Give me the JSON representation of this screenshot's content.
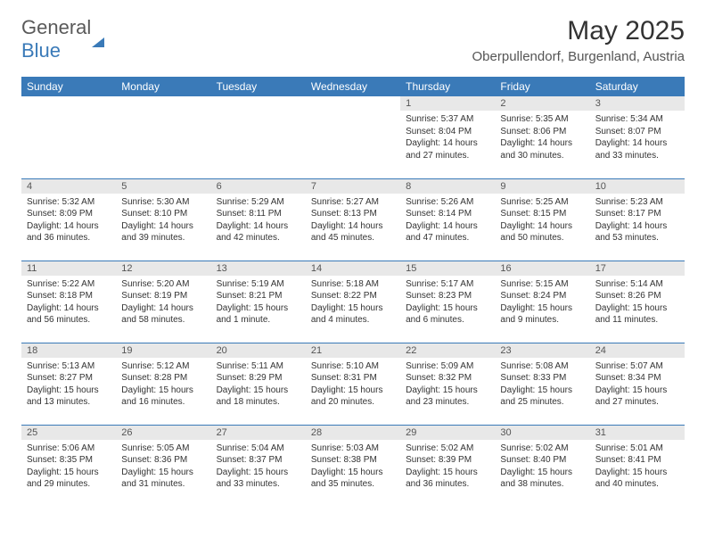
{
  "logo": {
    "general": "General",
    "blue": "Blue"
  },
  "title": "May 2025",
  "location": "Oberpullendorf, Burgenland, Austria",
  "colors": {
    "header_bg": "#3a7ab8",
    "header_fg": "#ffffff",
    "daynum_bg": "#e8e8e8",
    "border": "#3a7ab8",
    "text": "#333333"
  },
  "weekdays": [
    "Sunday",
    "Monday",
    "Tuesday",
    "Wednesday",
    "Thursday",
    "Friday",
    "Saturday"
  ],
  "weeks": [
    [
      null,
      null,
      null,
      null,
      {
        "d": "1",
        "sr": "5:37 AM",
        "ss": "8:04 PM",
        "dl": "14 hours and 27 minutes."
      },
      {
        "d": "2",
        "sr": "5:35 AM",
        "ss": "8:06 PM",
        "dl": "14 hours and 30 minutes."
      },
      {
        "d": "3",
        "sr": "5:34 AM",
        "ss": "8:07 PM",
        "dl": "14 hours and 33 minutes."
      }
    ],
    [
      {
        "d": "4",
        "sr": "5:32 AM",
        "ss": "8:09 PM",
        "dl": "14 hours and 36 minutes."
      },
      {
        "d": "5",
        "sr": "5:30 AM",
        "ss": "8:10 PM",
        "dl": "14 hours and 39 minutes."
      },
      {
        "d": "6",
        "sr": "5:29 AM",
        "ss": "8:11 PM",
        "dl": "14 hours and 42 minutes."
      },
      {
        "d": "7",
        "sr": "5:27 AM",
        "ss": "8:13 PM",
        "dl": "14 hours and 45 minutes."
      },
      {
        "d": "8",
        "sr": "5:26 AM",
        "ss": "8:14 PM",
        "dl": "14 hours and 47 minutes."
      },
      {
        "d": "9",
        "sr": "5:25 AM",
        "ss": "8:15 PM",
        "dl": "14 hours and 50 minutes."
      },
      {
        "d": "10",
        "sr": "5:23 AM",
        "ss": "8:17 PM",
        "dl": "14 hours and 53 minutes."
      }
    ],
    [
      {
        "d": "11",
        "sr": "5:22 AM",
        "ss": "8:18 PM",
        "dl": "14 hours and 56 minutes."
      },
      {
        "d": "12",
        "sr": "5:20 AM",
        "ss": "8:19 PM",
        "dl": "14 hours and 58 minutes."
      },
      {
        "d": "13",
        "sr": "5:19 AM",
        "ss": "8:21 PM",
        "dl": "15 hours and 1 minute."
      },
      {
        "d": "14",
        "sr": "5:18 AM",
        "ss": "8:22 PM",
        "dl": "15 hours and 4 minutes."
      },
      {
        "d": "15",
        "sr": "5:17 AM",
        "ss": "8:23 PM",
        "dl": "15 hours and 6 minutes."
      },
      {
        "d": "16",
        "sr": "5:15 AM",
        "ss": "8:24 PM",
        "dl": "15 hours and 9 minutes."
      },
      {
        "d": "17",
        "sr": "5:14 AM",
        "ss": "8:26 PM",
        "dl": "15 hours and 11 minutes."
      }
    ],
    [
      {
        "d": "18",
        "sr": "5:13 AM",
        "ss": "8:27 PM",
        "dl": "15 hours and 13 minutes."
      },
      {
        "d": "19",
        "sr": "5:12 AM",
        "ss": "8:28 PM",
        "dl": "15 hours and 16 minutes."
      },
      {
        "d": "20",
        "sr": "5:11 AM",
        "ss": "8:29 PM",
        "dl": "15 hours and 18 minutes."
      },
      {
        "d": "21",
        "sr": "5:10 AM",
        "ss": "8:31 PM",
        "dl": "15 hours and 20 minutes."
      },
      {
        "d": "22",
        "sr": "5:09 AM",
        "ss": "8:32 PM",
        "dl": "15 hours and 23 minutes."
      },
      {
        "d": "23",
        "sr": "5:08 AM",
        "ss": "8:33 PM",
        "dl": "15 hours and 25 minutes."
      },
      {
        "d": "24",
        "sr": "5:07 AM",
        "ss": "8:34 PM",
        "dl": "15 hours and 27 minutes."
      }
    ],
    [
      {
        "d": "25",
        "sr": "5:06 AM",
        "ss": "8:35 PM",
        "dl": "15 hours and 29 minutes."
      },
      {
        "d": "26",
        "sr": "5:05 AM",
        "ss": "8:36 PM",
        "dl": "15 hours and 31 minutes."
      },
      {
        "d": "27",
        "sr": "5:04 AM",
        "ss": "8:37 PM",
        "dl": "15 hours and 33 minutes."
      },
      {
        "d": "28",
        "sr": "5:03 AM",
        "ss": "8:38 PM",
        "dl": "15 hours and 35 minutes."
      },
      {
        "d": "29",
        "sr": "5:02 AM",
        "ss": "8:39 PM",
        "dl": "15 hours and 36 minutes."
      },
      {
        "d": "30",
        "sr": "5:02 AM",
        "ss": "8:40 PM",
        "dl": "15 hours and 38 minutes."
      },
      {
        "d": "31",
        "sr": "5:01 AM",
        "ss": "8:41 PM",
        "dl": "15 hours and 40 minutes."
      }
    ]
  ],
  "labels": {
    "sunrise": "Sunrise: ",
    "sunset": "Sunset: ",
    "daylight": "Daylight: "
  }
}
